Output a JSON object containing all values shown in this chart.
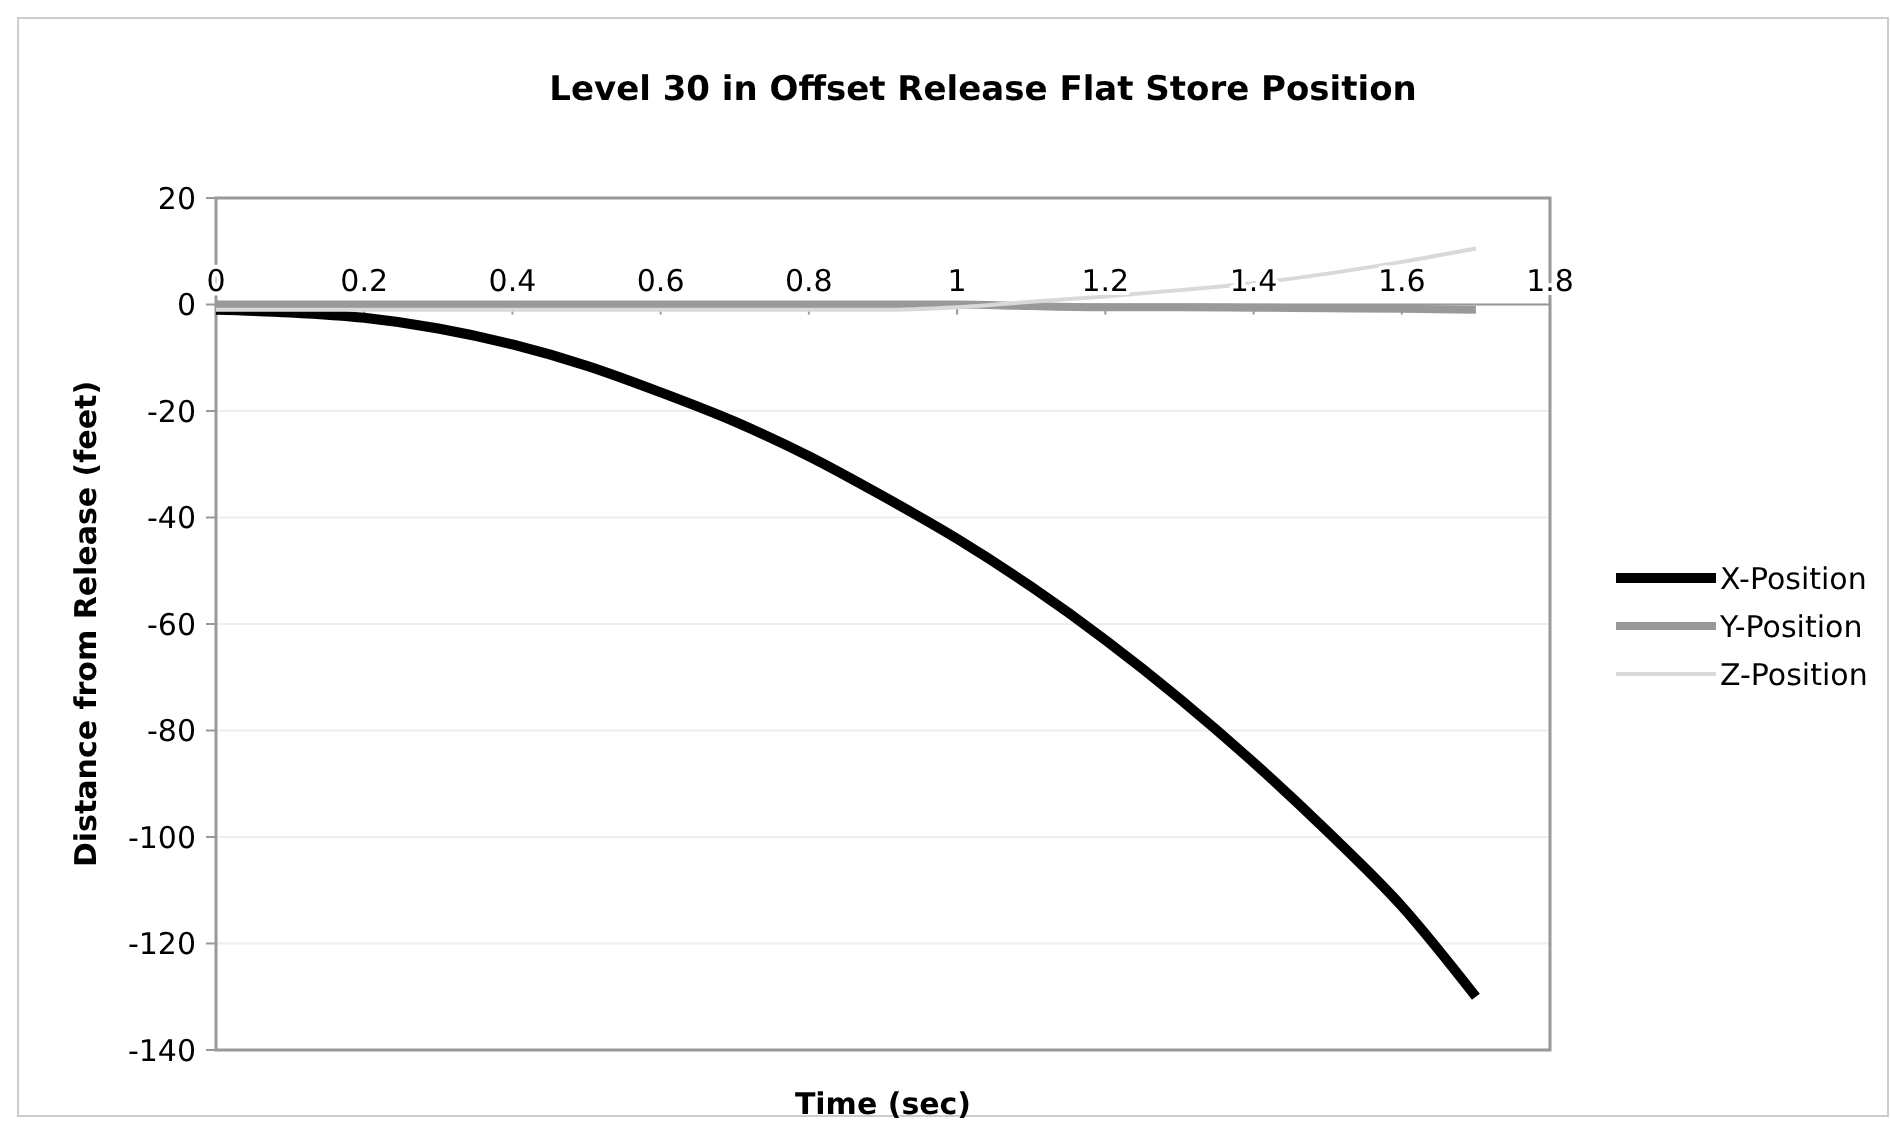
{
  "chart_data": {
    "type": "line",
    "title": "Level 30 in Offset Release Flat Store Position",
    "xlabel": "Time (sec)",
    "ylabel": "Distance from Release (feet)",
    "x": [
      0,
      0.1,
      0.2,
      0.3,
      0.4,
      0.5,
      0.6,
      0.7,
      0.8,
      0.9,
      1.0,
      1.1,
      1.2,
      1.3,
      1.4,
      1.5,
      1.6,
      1.7
    ],
    "series": [
      {
        "name": "X-Position",
        "color": "#000000",
        "values": [
          -1,
          -1.5,
          -2.5,
          -4.5,
          -7.5,
          -11.5,
          -16.5,
          -22,
          -28.5,
          -36,
          -44,
          -53,
          -63,
          -74,
          -86,
          -99,
          -113,
          -130
        ]
      },
      {
        "name": "Y-Position",
        "color": "#999999",
        "values": [
          0,
          0,
          0,
          0,
          0,
          0,
          0,
          0,
          0,
          0,
          0,
          -0.3,
          -0.5,
          -0.5,
          -0.6,
          -0.7,
          -0.8,
          -1
        ]
      },
      {
        "name": "Z-Position",
        "color": "#d9d9d9",
        "values": [
          -1,
          -1,
          -1,
          -1,
          -1,
          -1,
          -1,
          -1,
          -1,
          -1,
          -0.5,
          0.5,
          1.5,
          2.7,
          4,
          5.8,
          8,
          10.5
        ]
      }
    ],
    "xlim": [
      0,
      1.8
    ],
    "xticks": [
      0,
      0.2,
      0.4,
      0.6,
      0.8,
      1,
      1.2,
      1.4,
      1.6,
      1.8
    ],
    "ylim": [
      -140,
      20
    ],
    "yticks": [
      -140,
      -120,
      -100,
      -80,
      -60,
      -40,
      -20,
      0,
      20
    ],
    "grid": "y",
    "legend": "right",
    "marker": "none",
    "line_style": "solid"
  }
}
